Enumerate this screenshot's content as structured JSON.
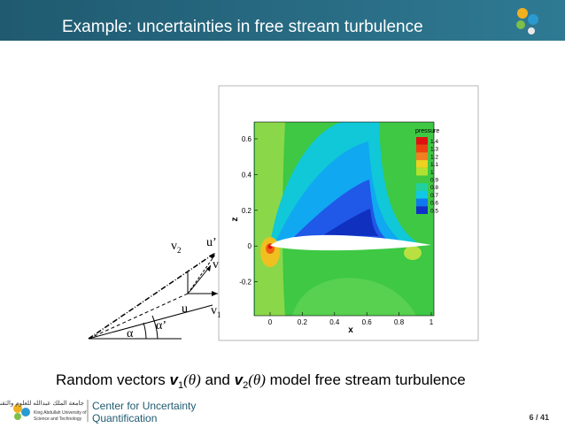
{
  "header": {
    "title": "Example: uncertainties in free stream turbulence"
  },
  "figure": {
    "plot": {
      "x_label": "x",
      "z_label": "z",
      "x_ticks": [
        "0",
        "0.2",
        "0.4",
        "0.6",
        "0.8",
        "1"
      ],
      "z_ticks": [
        "0.6",
        "0.4",
        "0.2",
        "0",
        "-0.2"
      ],
      "legend": {
        "title": "pressure",
        "levels": [
          "1.4",
          "1.3",
          "1.2",
          "1.1",
          "1",
          "0.9",
          "0.8",
          "0.7",
          "0.6",
          "0.5"
        ]
      }
    },
    "diagram": {
      "v2": {
        "base": "v",
        "sub": "2"
      },
      "u_prime": "u’",
      "v": "v",
      "u": "u",
      "v1": {
        "base": "v",
        "sub": "1"
      },
      "alpha_prime": "α’",
      "alpha": "α"
    }
  },
  "caption": {
    "parts": [
      "Random vectors ",
      "v",
      "1",
      "(θ)",
      " and ",
      "v",
      "2",
      "(θ)",
      " model free stream turbulence"
    ]
  },
  "footer": {
    "arabic": "جامعة الملك عبدالله للعلوم والتقنية",
    "university": [
      "King Abdullah University of",
      "Science and Technology"
    ],
    "center": [
      "Center for Uncertainty",
      "Quantification"
    ],
    "page": "6 / 41"
  }
}
